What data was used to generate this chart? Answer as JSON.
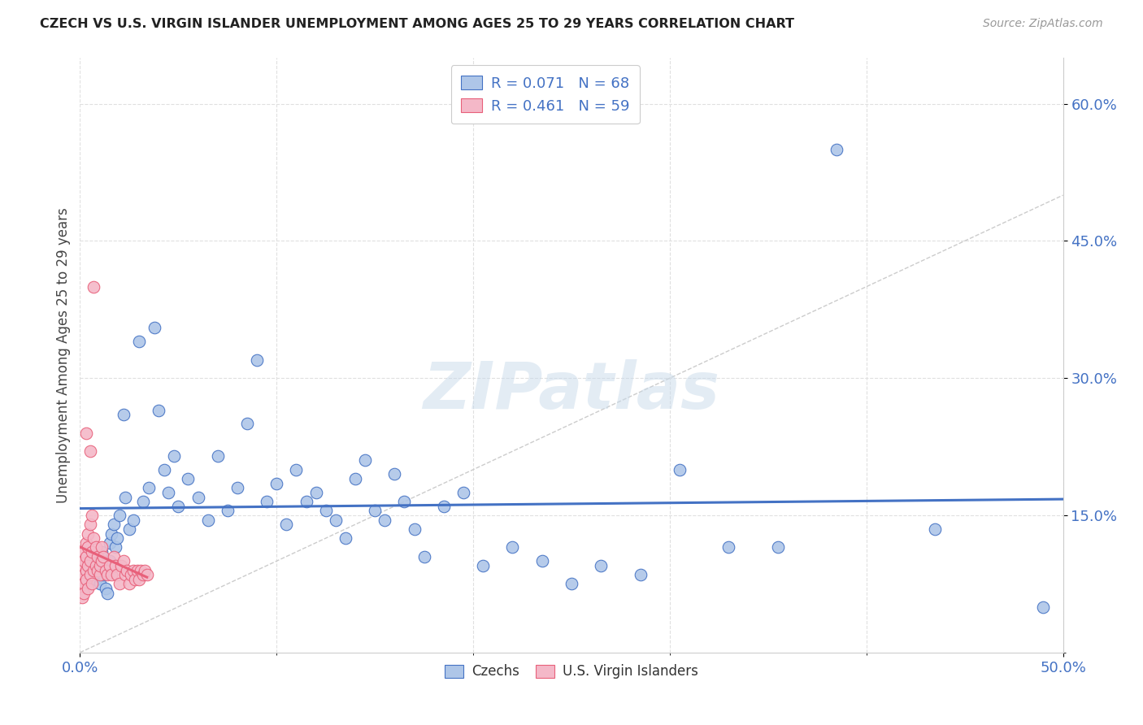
{
  "title": "CZECH VS U.S. VIRGIN ISLANDER UNEMPLOYMENT AMONG AGES 25 TO 29 YEARS CORRELATION CHART",
  "source": "Source: ZipAtlas.com",
  "ylabel": "Unemployment Among Ages 25 to 29 years",
  "xlim": [
    0.0,
    0.5
  ],
  "ylim": [
    0.0,
    0.65
  ],
  "czech_color": "#aec6e8",
  "czech_edge_color": "#4472c4",
  "vi_color": "#f4b8c8",
  "vi_edge_color": "#e8607a",
  "vi_line_color": "#e8607a",
  "czech_line_color": "#4472c4",
  "czech_R": 0.071,
  "czech_N": 68,
  "vi_R": 0.461,
  "vi_N": 59,
  "watermark_text": "ZIPatlas",
  "legend_text_color": "#4472c4",
  "grid_color": "#e0e0e0",
  "tick_color": "#4472c4",
  "czechs_x": [
    0.005,
    0.007,
    0.008,
    0.009,
    0.01,
    0.011,
    0.012,
    0.013,
    0.014,
    0.015,
    0.015,
    0.016,
    0.017,
    0.018,
    0.019,
    0.02,
    0.022,
    0.023,
    0.025,
    0.027,
    0.03,
    0.032,
    0.035,
    0.038,
    0.04,
    0.043,
    0.045,
    0.048,
    0.05,
    0.055,
    0.06,
    0.065,
    0.07,
    0.075,
    0.08,
    0.085,
    0.09,
    0.095,
    0.1,
    0.105,
    0.11,
    0.115,
    0.12,
    0.125,
    0.13,
    0.135,
    0.14,
    0.145,
    0.15,
    0.155,
    0.16,
    0.165,
    0.17,
    0.175,
    0.185,
    0.195,
    0.205,
    0.22,
    0.235,
    0.25,
    0.265,
    0.285,
    0.305,
    0.33,
    0.355,
    0.385,
    0.435,
    0.49
  ],
  "czechs_y": [
    0.105,
    0.09,
    0.08,
    0.095,
    0.075,
    0.11,
    0.085,
    0.07,
    0.065,
    0.1,
    0.12,
    0.13,
    0.14,
    0.115,
    0.125,
    0.15,
    0.26,
    0.17,
    0.135,
    0.145,
    0.34,
    0.165,
    0.18,
    0.355,
    0.265,
    0.2,
    0.175,
    0.215,
    0.16,
    0.19,
    0.17,
    0.145,
    0.215,
    0.155,
    0.18,
    0.25,
    0.32,
    0.165,
    0.185,
    0.14,
    0.2,
    0.165,
    0.175,
    0.155,
    0.145,
    0.125,
    0.19,
    0.21,
    0.155,
    0.145,
    0.195,
    0.165,
    0.135,
    0.105,
    0.16,
    0.175,
    0.095,
    0.115,
    0.1,
    0.075,
    0.095,
    0.085,
    0.2,
    0.115,
    0.115,
    0.55,
    0.135,
    0.05
  ],
  "vi_x": [
    0.001,
    0.001,
    0.001,
    0.001,
    0.002,
    0.002,
    0.002,
    0.002,
    0.002,
    0.003,
    0.003,
    0.003,
    0.003,
    0.003,
    0.004,
    0.004,
    0.004,
    0.004,
    0.005,
    0.005,
    0.005,
    0.005,
    0.006,
    0.006,
    0.006,
    0.007,
    0.007,
    0.007,
    0.008,
    0.008,
    0.009,
    0.009,
    0.01,
    0.01,
    0.011,
    0.011,
    0.012,
    0.013,
    0.014,
    0.015,
    0.016,
    0.017,
    0.018,
    0.019,
    0.02,
    0.021,
    0.022,
    0.023,
    0.024,
    0.025,
    0.026,
    0.027,
    0.028,
    0.029,
    0.03,
    0.031,
    0.032,
    0.033,
    0.034
  ],
  "vi_y": [
    0.095,
    0.08,
    0.07,
    0.06,
    0.085,
    0.075,
    0.065,
    0.1,
    0.11,
    0.09,
    0.08,
    0.12,
    0.105,
    0.24,
    0.07,
    0.095,
    0.115,
    0.13,
    0.085,
    0.1,
    0.14,
    0.22,
    0.11,
    0.15,
    0.075,
    0.09,
    0.125,
    0.4,
    0.095,
    0.115,
    0.105,
    0.09,
    0.085,
    0.095,
    0.1,
    0.115,
    0.105,
    0.09,
    0.085,
    0.095,
    0.085,
    0.105,
    0.095,
    0.085,
    0.075,
    0.095,
    0.1,
    0.085,
    0.09,
    0.075,
    0.085,
    0.09,
    0.08,
    0.09,
    0.08,
    0.09,
    0.085,
    0.09,
    0.085
  ]
}
